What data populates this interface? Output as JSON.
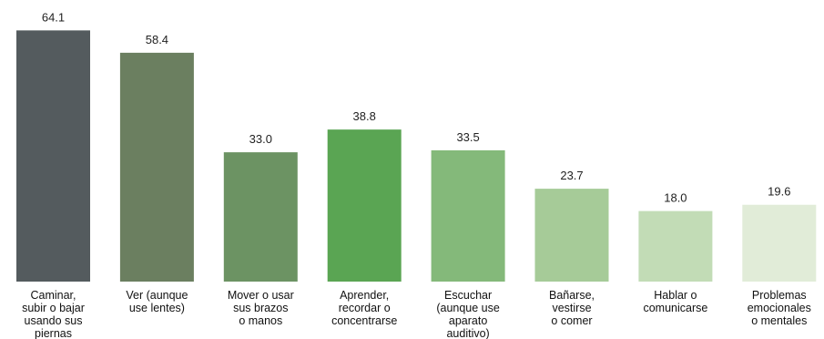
{
  "chart_data": {
    "type": "bar",
    "title": "",
    "xlabel": "",
    "ylabel": "",
    "ylim": [
      0,
      70
    ],
    "grid": false,
    "legend": "none",
    "categories": [
      [
        "Caminar,",
        "subir o bajar",
        "usando sus",
        "piernas"
      ],
      [
        "Ver (aunque",
        "use lentes)"
      ],
      [
        "Mover o usar",
        "sus brazos",
        "o manos"
      ],
      [
        "Aprender,",
        "recordar o",
        "concentrarse"
      ],
      [
        "Escuchar",
        "(aunque use",
        "aparato",
        "auditivo)"
      ],
      [
        "Bañarse,",
        "vestirse",
        "o comer"
      ],
      [
        "Hablar o",
        "comunicarse"
      ],
      [
        "Problemas",
        "emocionales",
        "o mentales"
      ]
    ],
    "values": [
      64.1,
      58.4,
      33.0,
      38.8,
      33.5,
      23.7,
      18.0,
      19.6
    ],
    "value_labels": [
      "64.1",
      "58.4",
      "33.0",
      "38.8",
      "33.5",
      "23.7",
      "18.0",
      "19.6"
    ],
    "colors": [
      "#545b5e",
      "#6b7f60",
      "#6c9363",
      "#5aa553",
      "#84b97a",
      "#a6cb98",
      "#c2dcb6",
      "#e1ecd8"
    ]
  }
}
